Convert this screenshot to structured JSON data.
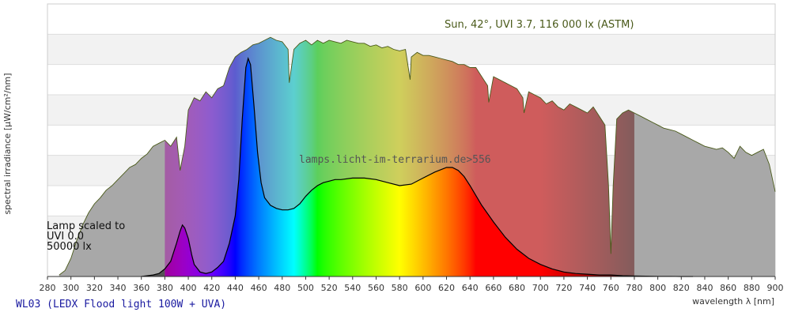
{
  "chart_data": {
    "type": "area",
    "xlabel": "wavelength λ [nm]",
    "ylabel": "spectral irradiance [µW/cm²/nm]",
    "xlim": [
      280,
      900
    ],
    "ylim": [
      0,
      180
    ],
    "x_ticks": [
      280,
      300,
      320,
      340,
      360,
      380,
      400,
      420,
      440,
      460,
      480,
      500,
      520,
      540,
      560,
      580,
      600,
      620,
      640,
      660,
      680,
      700,
      720,
      740,
      760,
      780,
      800,
      820,
      840,
      860,
      880,
      900
    ],
    "grid": "horizontal bands",
    "series": [
      {
        "name": "Sun, 42°, UVI 3.7, 116 000 lx (ASTM)",
        "x": [
          290,
          295,
          300,
          305,
          310,
          315,
          320,
          325,
          330,
          335,
          340,
          345,
          350,
          355,
          360,
          365,
          370,
          375,
          380,
          385,
          390,
          393,
          397,
          400,
          405,
          410,
          415,
          420,
          425,
          430,
          435,
          440,
          445,
          450,
          455,
          460,
          465,
          470,
          475,
          480,
          485,
          486,
          490,
          495,
          500,
          505,
          510,
          515,
          520,
          525,
          530,
          535,
          540,
          545,
          550,
          555,
          560,
          565,
          570,
          575,
          580,
          585,
          589,
          590,
          595,
          600,
          605,
          610,
          615,
          620,
          625,
          630,
          635,
          640,
          645,
          650,
          655,
          656,
          660,
          665,
          670,
          675,
          680,
          685,
          686,
          690,
          695,
          700,
          705,
          710,
          715,
          720,
          725,
          730,
          735,
          740,
          745,
          750,
          755,
          758,
          760,
          762,
          765,
          770,
          775,
          780,
          785,
          790,
          795,
          800,
          805,
          810,
          815,
          820,
          825,
          830,
          835,
          840,
          845,
          850,
          855,
          860,
          865,
          870,
          875,
          880,
          885,
          890,
          895,
          900
        ],
        "y": [
          1,
          4,
          12,
          24,
          34,
          42,
          48,
          52,
          57,
          60,
          64,
          68,
          72,
          74,
          78,
          81,
          86,
          88,
          90,
          86,
          92,
          70,
          86,
          110,
          118,
          116,
          122,
          118,
          124,
          126,
          138,
          145,
          148,
          150,
          153,
          154,
          156,
          158,
          156,
          155,
          150,
          128,
          150,
          154,
          156,
          153,
          156,
          154,
          156,
          155,
          154,
          156,
          155,
          154,
          154,
          152,
          153,
          151,
          152,
          150,
          149,
          150,
          130,
          145,
          148,
          146,
          146,
          145,
          144,
          143,
          142,
          140,
          140,
          138,
          138,
          132,
          126,
          115,
          132,
          130,
          128,
          126,
          124,
          118,
          108,
          122,
          120,
          118,
          114,
          116,
          112,
          110,
          114,
          112,
          110,
          108,
          112,
          106,
          100,
          60,
          15,
          60,
          104,
          108,
          110,
          108,
          106,
          104,
          102,
          100,
          98,
          97,
          96,
          94,
          92,
          90,
          88,
          86,
          85,
          84,
          85,
          82,
          78,
          86,
          82,
          80,
          82,
          84,
          74,
          56
        ],
        "color": "#a8a8a8"
      },
      {
        "name": "WL03 (LEDX Flood light 100W + UVA)",
        "x": [
          360,
          370,
          375,
          380,
          385,
          390,
          393,
          395,
          397,
          400,
          403,
          405,
          410,
          415,
          420,
          425,
          430,
          435,
          440,
          443,
          446,
          449,
          451,
          453,
          456,
          459,
          462,
          465,
          470,
          475,
          480,
          485,
          490,
          495,
          500,
          505,
          510,
          515,
          520,
          525,
          530,
          540,
          550,
          560,
          570,
          580,
          590,
          600,
          610,
          620,
          625,
          630,
          635,
          640,
          650,
          660,
          670,
          680,
          690,
          700,
          710,
          720,
          730,
          740,
          750,
          760,
          770,
          780,
          790,
          800,
          810,
          820,
          830
        ],
        "y": [
          0,
          1,
          2,
          5,
          10,
          22,
          30,
          34,
          32,
          25,
          14,
          8,
          3,
          2,
          3,
          6,
          10,
          22,
          40,
          64,
          104,
          138,
          144,
          140,
          112,
          82,
          62,
          52,
          47,
          45,
          44,
          44,
          45,
          48,
          53,
          57,
          60,
          62,
          63,
          64,
          64,
          65,
          65,
          64,
          62,
          60,
          61,
          65,
          69,
          72,
          72,
          70,
          66,
          60,
          47,
          36,
          26,
          18,
          12,
          8,
          5,
          3,
          2,
          1.5,
          1,
          1,
          0.5,
          0.3,
          0.2,
          0.1,
          0.1,
          0,
          0
        ],
        "color": "#000000"
      }
    ],
    "annotations": {
      "sun_label": "Sun, 42°, UVI 3.7, 116 000 lx (ASTM)",
      "watermark": "lamps.licht-im-terrarium.de>556",
      "lamp_scale_line1": "Lamp scaled to",
      "lamp_scale_line2": "UVI 0.0",
      "lamp_scale_line3": "50000 lx",
      "footer_title": "WL03 (LEDX Flood light 100W + UVA)"
    }
  }
}
